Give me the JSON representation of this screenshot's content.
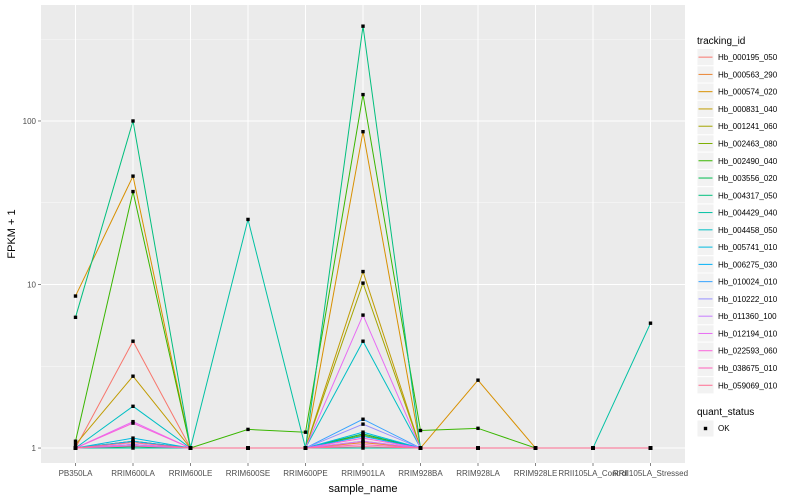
{
  "chart_data": {
    "type": "line",
    "xlabel": "sample_name",
    "ylabel": "FPKM + 1",
    "y_scale": "log10",
    "ylim": [
      0.81,
      512
    ],
    "y_ticks": [
      {
        "value": 1,
        "label": "1"
      },
      {
        "value": 10,
        "label": "10"
      },
      {
        "value": 100,
        "label": "100"
      }
    ],
    "grid": true,
    "categories": [
      "PB350LA",
      "RRIM600LA",
      "RRIM600LE",
      "RRIM600SE",
      "RRIM600PE",
      "RRIM901LA",
      "RRIM928BA",
      "RRIM928LA",
      "RRIM928LE",
      "RRII105LA_Control",
      "RRII105LA_Stressed"
    ],
    "series": [
      {
        "name": "Hb_000195_050",
        "color": "#F8766D",
        "values": [
          1,
          4.5,
          1,
          1,
          1,
          1.1,
          1,
          1,
          1,
          1,
          1
        ]
      },
      {
        "name": "Hb_000563_290",
        "color": "#EA8331",
        "values": [
          1,
          1.05,
          1,
          1,
          1,
          1.08,
          1,
          1,
          1,
          1,
          1
        ]
      },
      {
        "name": "Hb_000574_020",
        "color": "#D89000",
        "values": [
          8.5,
          46,
          1,
          1,
          1,
          86,
          1,
          2.6,
          1,
          1,
          1
        ]
      },
      {
        "name": "Hb_000831_040",
        "color": "#C09B00",
        "values": [
          1.05,
          2.75,
          1,
          1,
          1,
          12,
          1,
          1,
          1,
          1,
          1
        ]
      },
      {
        "name": "Hb_001241_060",
        "color": "#A3A500",
        "values": [
          1,
          1.1,
          1,
          1,
          1,
          10.2,
          1,
          1,
          1,
          1,
          1
        ]
      },
      {
        "name": "Hb_002463_080",
        "color": "#7CAE00",
        "values": [
          1,
          1.1,
          1,
          1,
          1,
          1.2,
          1,
          1,
          1,
          1,
          1
        ]
      },
      {
        "name": "Hb_002490_040",
        "color": "#39B600",
        "values": [
          1.1,
          37,
          1,
          1.3,
          1.25,
          145,
          1.28,
          1.32,
          1,
          1,
          1
        ]
      },
      {
        "name": "Hb_003556_020",
        "color": "#00BB4E",
        "values": [
          1,
          1.02,
          1,
          1,
          1,
          1.22,
          1,
          1,
          1,
          1,
          1
        ]
      },
      {
        "name": "Hb_004317_050",
        "color": "#00BF7D",
        "values": [
          6.3,
          100,
          1,
          1,
          1,
          380,
          1,
          1,
          1,
          1,
          1
        ]
      },
      {
        "name": "Hb_004429_040",
        "color": "#00C1A3",
        "values": [
          1,
          1,
          1,
          25,
          1,
          1,
          1,
          1,
          1,
          1,
          5.8
        ]
      },
      {
        "name": "Hb_004458_050",
        "color": "#00BFC4",
        "values": [
          1,
          1.8,
          1,
          1,
          1,
          4.5,
          1,
          1,
          1,
          1,
          1
        ]
      },
      {
        "name": "Hb_005741_010",
        "color": "#00BAE0",
        "values": [
          1,
          1.15,
          1,
          1,
          1,
          1.25,
          1,
          1,
          1,
          1,
          1
        ]
      },
      {
        "name": "Hb_006275_030",
        "color": "#00B0F6",
        "values": [
          1,
          1.1,
          1,
          1,
          1,
          1.18,
          1,
          1,
          1,
          1,
          1
        ]
      },
      {
        "name": "Hb_010024_010",
        "color": "#35A2FF",
        "values": [
          1,
          1.05,
          1,
          1,
          1,
          1.5,
          1,
          1,
          1,
          1,
          1
        ]
      },
      {
        "name": "Hb_010222_010",
        "color": "#9590FF",
        "values": [
          1,
          1.05,
          1,
          1,
          1,
          1.4,
          1,
          1,
          1,
          1,
          1
        ]
      },
      {
        "name": "Hb_011360_100",
        "color": "#C77CFF",
        "values": [
          1,
          1.05,
          1,
          1,
          1,
          1.1,
          1,
          1,
          1,
          1,
          1
        ]
      },
      {
        "name": "Hb_012194_010",
        "color": "#E76BF3",
        "values": [
          1,
          1.45,
          1,
          1,
          1,
          6.5,
          1,
          1,
          1,
          1,
          1
        ]
      },
      {
        "name": "Hb_022593_060",
        "color": "#FA62DB",
        "values": [
          1,
          1.42,
          1,
          1,
          1,
          1.15,
          1,
          1,
          1,
          1,
          1
        ]
      },
      {
        "name": "Hb_038675_010",
        "color": "#FF62BC",
        "values": [
          1,
          1.03,
          1,
          1,
          1,
          1.05,
          1,
          1,
          1,
          1,
          1
        ]
      },
      {
        "name": "Hb_059069_010",
        "color": "#FF6C91",
        "values": [
          1,
          1.08,
          1,
          1,
          1,
          1.02,
          1,
          1,
          1,
          1,
          1
        ]
      }
    ],
    "legend": {
      "position": "right",
      "color_title": "tracking_id",
      "shape_title": "quant_status",
      "shape_entries": [
        "OK"
      ]
    },
    "colors": {
      "panel_background": "#EBEBEB",
      "grid": "#FFFFFF",
      "point": "#000000",
      "legend_key": "#F2F2F2"
    }
  }
}
